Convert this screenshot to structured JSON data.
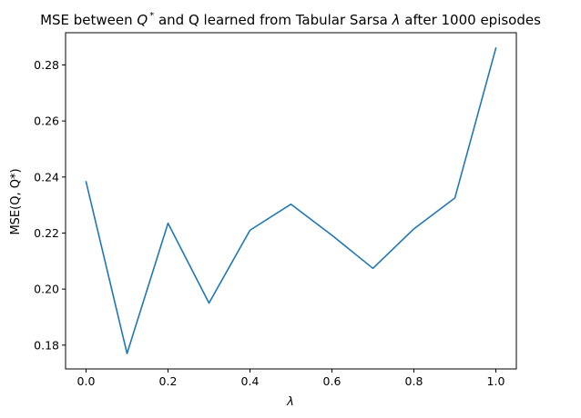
{
  "chart_data": {
    "type": "line",
    "title": "MSE between Q* and Q learned from Tabular Sarsa λ after 1000 episodes",
    "title_parts": {
      "prefix": "MSE between ",
      "q_star_base": "Q",
      "q_star_sup": "*",
      "middle": " and Q learned from Tabular Sarsa ",
      "lambda": "λ",
      "suffix": " after 1000 episodes"
    },
    "xlabel": "λ",
    "ylabel": "MSE(Q, Q*)",
    "xlim": [
      -0.05,
      1.05
    ],
    "ylim": [
      0.1715,
      0.2915
    ],
    "xticks": [
      0.0,
      0.2,
      0.4,
      0.6,
      0.8,
      1.0
    ],
    "xtick_labels": [
      "0.0",
      "0.2",
      "0.4",
      "0.6",
      "0.8",
      "1.0"
    ],
    "yticks": [
      0.18,
      0.2,
      0.22,
      0.24,
      0.26,
      0.28
    ],
    "ytick_labels": [
      "0.18",
      "0.20",
      "0.22",
      "0.24",
      "0.26",
      "0.28"
    ],
    "grid": false,
    "series": [
      {
        "color": "#1f77b4",
        "x": [
          0.0,
          0.1,
          0.2,
          0.3,
          0.4,
          0.5,
          0.6,
          0.7,
          0.8,
          0.9,
          1.0
        ],
        "y": [
          0.2383,
          0.177,
          0.2235,
          0.195,
          0.221,
          0.2303,
          0.2192,
          0.2074,
          0.2215,
          0.2325,
          0.286
        ]
      }
    ]
  }
}
